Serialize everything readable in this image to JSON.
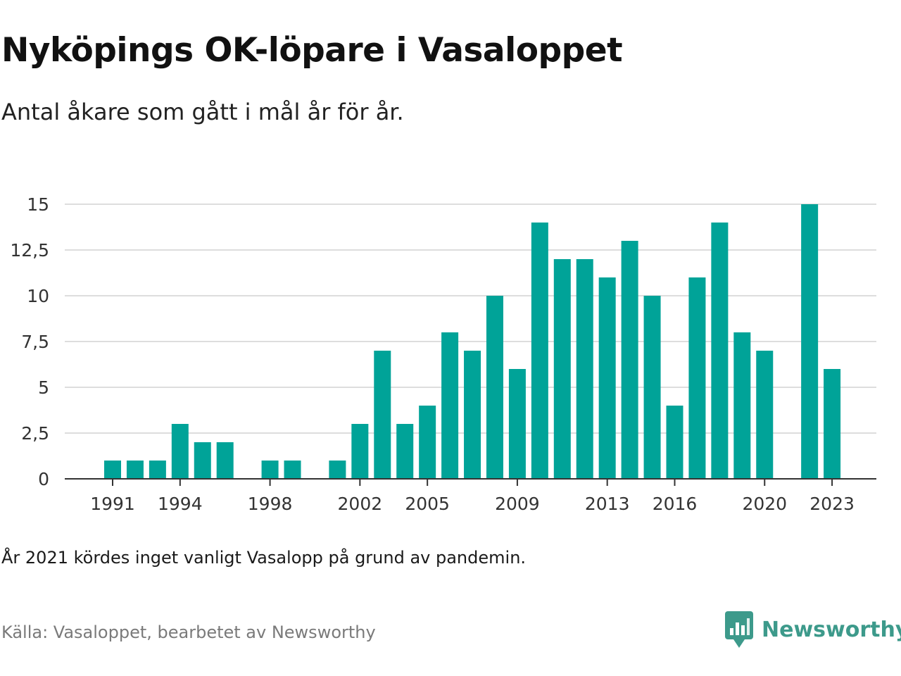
{
  "brand": {
    "name": "Newsworthy",
    "color": "#3d9a8b",
    "icon": "bar-chart-bubble-icon"
  },
  "note": "År 2021 kördes inget vanligt Vasalopp på grund av pandemin.",
  "source": "Källa: Vasaloppet, bearbetet av Newsworthy",
  "chart_data": {
    "type": "bar",
    "title": "Nyköpings OK-löpare i Vasaloppet",
    "subtitle": "Antal åkare som gått i mål år för år.",
    "xlabel": "",
    "ylabel": "",
    "bar_color": "#00a398",
    "ylim": [
      0,
      15
    ],
    "yticks": [
      0,
      2.5,
      5,
      7.5,
      10,
      12.5,
      15
    ],
    "ytick_labels": [
      "0",
      "2,5",
      "5",
      "7,5",
      "10",
      "12,5",
      "15"
    ],
    "xlim": [
      1991,
      2023
    ],
    "xticks": [
      1991,
      1994,
      1998,
      2002,
      2005,
      2009,
      2013,
      2016,
      2020,
      2023
    ],
    "x": [
      1991,
      1992,
      1993,
      1994,
      1995,
      1996,
      1997,
      1998,
      1999,
      2000,
      2001,
      2002,
      2003,
      2004,
      2005,
      2006,
      2007,
      2008,
      2009,
      2010,
      2011,
      2012,
      2013,
      2014,
      2015,
      2016,
      2017,
      2018,
      2019,
      2020,
      2021,
      2022,
      2023
    ],
    "values": [
      1,
      1,
      1,
      3,
      2,
      2,
      0,
      1,
      1,
      0,
      1,
      3,
      7,
      3,
      4,
      8,
      7,
      10,
      6,
      14,
      12,
      12,
      11,
      13,
      10,
      4,
      11,
      14,
      8,
      7,
      0,
      15,
      6
    ],
    "grid": true,
    "legend": "none"
  }
}
